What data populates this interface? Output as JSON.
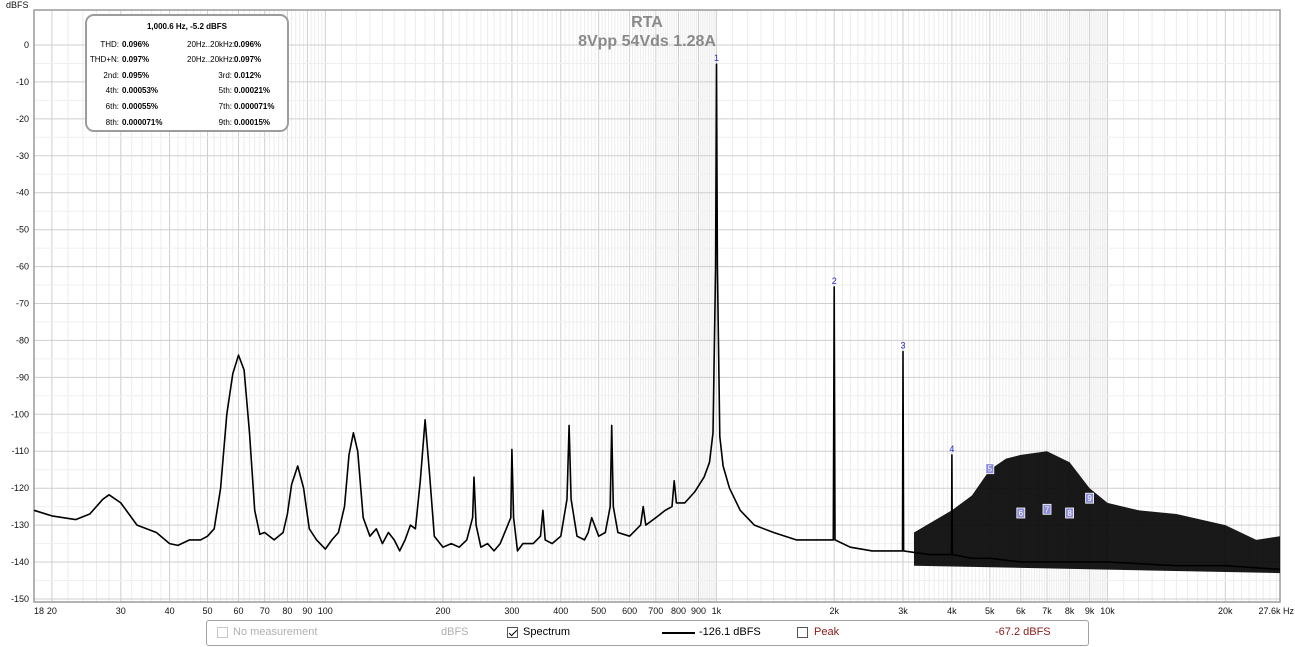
{
  "chart_data": {
    "type": "line",
    "title": "RTA",
    "subtitle": "8Vpp 54Vds 1.28A",
    "ylabel": "dBFS",
    "xlabel": "",
    "xscale": "log",
    "xlim": [
      18,
      27600
    ],
    "ylim": [
      -150,
      5
    ],
    "grid": true,
    "x_ticks": [
      "18",
      "20",
      "30",
      "40",
      "50",
      "60",
      "70",
      "80",
      "90",
      "100",
      "200",
      "300",
      "400",
      "500",
      "600",
      "700",
      "800",
      "900",
      "1k",
      "2k",
      "3k",
      "4k",
      "5k",
      "6k",
      "7k",
      "8k",
      "9k",
      "10k",
      "20k",
      "27.6k Hz"
    ],
    "y_ticks": [
      "0",
      "-10",
      "-20",
      "-30",
      "-40",
      "-50",
      "-60",
      "-70",
      "-80",
      "-90",
      "-100",
      "-110",
      "-120",
      "-130",
      "-140",
      "-150"
    ],
    "series": [
      {
        "values": [
          [
            18,
            -126
          ],
          [
            20,
            -127.5
          ],
          [
            23,
            -128.5
          ],
          [
            25,
            -127
          ],
          [
            27,
            -123
          ],
          [
            28,
            -121.8
          ],
          [
            30,
            -124
          ],
          [
            33,
            -130
          ],
          [
            37,
            -132
          ],
          [
            40,
            -135
          ],
          [
            42,
            -135.5
          ],
          [
            45,
            -134
          ],
          [
            48,
            -134
          ],
          [
            50,
            -133
          ],
          [
            52,
            -131
          ],
          [
            54,
            -120
          ],
          [
            56,
            -100
          ],
          [
            58,
            -89
          ],
          [
            60,
            -84
          ],
          [
            62,
            -88
          ],
          [
            64,
            -105
          ],
          [
            66,
            -126
          ],
          [
            68,
            -132.5
          ],
          [
            70,
            -132
          ],
          [
            74,
            -134
          ],
          [
            78,
            -132
          ],
          [
            80,
            -127
          ],
          [
            82,
            -119
          ],
          [
            85,
            -114
          ],
          [
            88,
            -120
          ],
          [
            91,
            -131
          ],
          [
            95,
            -134
          ],
          [
            100,
            -136.5
          ],
          [
            104,
            -134
          ],
          [
            108,
            -132
          ],
          [
            112,
            -125
          ],
          [
            115,
            -111
          ],
          [
            118,
            -105
          ],
          [
            121,
            -110
          ],
          [
            125,
            -128
          ],
          [
            130,
            -133
          ],
          [
            135,
            -131
          ],
          [
            140,
            -135
          ],
          [
            145,
            -132
          ],
          [
            150,
            -134
          ],
          [
            155,
            -137
          ],
          [
            160,
            -134
          ],
          [
            165,
            -130
          ],
          [
            170,
            -131
          ],
          [
            175,
            -118
          ],
          [
            180,
            -101.5
          ],
          [
            185,
            -117
          ],
          [
            190,
            -133
          ],
          [
            200,
            -136
          ],
          [
            210,
            -135
          ],
          [
            220,
            -136
          ],
          [
            230,
            -134
          ],
          [
            238,
            -128
          ],
          [
            240,
            -117
          ],
          [
            243,
            -130
          ],
          [
            250,
            -136
          ],
          [
            260,
            -135
          ],
          [
            270,
            -137
          ],
          [
            280,
            -135
          ],
          [
            298,
            -128
          ],
          [
            300,
            -109.5
          ],
          [
            303,
            -128
          ],
          [
            310,
            -137
          ],
          [
            320,
            -135
          ],
          [
            340,
            -135
          ],
          [
            355,
            -133
          ],
          [
            360,
            -126
          ],
          [
            365,
            -134
          ],
          [
            380,
            -135
          ],
          [
            400,
            -133
          ],
          [
            415,
            -123
          ],
          [
            420,
            -103
          ],
          [
            425,
            -123
          ],
          [
            440,
            -133
          ],
          [
            460,
            -134
          ],
          [
            470,
            -132
          ],
          [
            480,
            -128
          ],
          [
            500,
            -133
          ],
          [
            520,
            -132
          ],
          [
            535,
            -125
          ],
          [
            540,
            -103
          ],
          [
            545,
            -125
          ],
          [
            560,
            -132
          ],
          [
            600,
            -133
          ],
          [
            640,
            -130
          ],
          [
            650,
            -125
          ],
          [
            660,
            -130
          ],
          [
            700,
            -128
          ],
          [
            740,
            -126
          ],
          [
            770,
            -125
          ],
          [
            780,
            -118
          ],
          [
            790,
            -124
          ],
          [
            830,
            -124
          ],
          [
            880,
            -121
          ],
          [
            930,
            -117
          ],
          [
            960,
            -113
          ],
          [
            980,
            -105
          ],
          [
            995,
            -60
          ],
          [
            1000.6,
            -5.2
          ],
          [
            1006,
            -60
          ],
          [
            1020,
            -106
          ],
          [
            1040,
            -114
          ],
          [
            1080,
            -120
          ],
          [
            1150,
            -126
          ],
          [
            1250,
            -130
          ],
          [
            1400,
            -132
          ],
          [
            1600,
            -134
          ],
          [
            1800,
            -134
          ],
          [
            1990,
            -134
          ],
          [
            2000,
            -65.5
          ],
          [
            2010,
            -134
          ],
          [
            2200,
            -136
          ],
          [
            2500,
            -137
          ],
          [
            2990,
            -137
          ],
          [
            3000,
            -83
          ],
          [
            3010,
            -137
          ],
          [
            3500,
            -138
          ],
          [
            3990,
            -138
          ],
          [
            4000,
            -111
          ],
          [
            4010,
            -138
          ],
          [
            4500,
            -139
          ],
          [
            5000,
            -139
          ],
          [
            6000,
            -140
          ],
          [
            7000,
            -140
          ],
          [
            8000,
            -140
          ],
          [
            10000,
            -140
          ],
          [
            15000,
            -141
          ],
          [
            20000,
            -141
          ],
          [
            27600,
            -142
          ]
        ]
      }
    ],
    "noise_envelope": [
      [
        3200,
        -132
      ],
      [
        4000,
        -126
      ],
      [
        4500,
        -122
      ],
      [
        5000,
        -115
      ],
      [
        5500,
        -112
      ],
      [
        6000,
        -111
      ],
      [
        7000,
        -110
      ],
      [
        8000,
        -113
      ],
      [
        9000,
        -120
      ],
      [
        10000,
        -124
      ],
      [
        12000,
        -126
      ],
      [
        15000,
        -127
      ],
      [
        20000,
        -130
      ],
      [
        24000,
        -134
      ],
      [
        27600,
        -133
      ]
    ],
    "markers": [
      {
        "label": "1",
        "x": 1000.6,
        "y": -5.2,
        "style": "text"
      },
      {
        "label": "2",
        "x": 2000,
        "y": -65.5,
        "style": "text"
      },
      {
        "label": "3",
        "x": 3000,
        "y": -83,
        "style": "text"
      },
      {
        "label": "4",
        "x": 4000,
        "y": -111,
        "style": "text"
      },
      {
        "label": "5",
        "x": 5000,
        "y": -115,
        "style": "box"
      },
      {
        "label": "6",
        "x": 6000,
        "y": -127,
        "style": "box"
      },
      {
        "label": "7",
        "x": 7000,
        "y": -126,
        "style": "box"
      },
      {
        "label": "8",
        "x": 8000,
        "y": -127,
        "style": "box"
      },
      {
        "label": "9",
        "x": 9000,
        "y": -123,
        "style": "box"
      }
    ],
    "colors": {
      "trace": "#000000",
      "grid": "#d6d6d6",
      "marker_text": "#2b2bd0",
      "marker_box": "#8d8dd8",
      "title": "#8a8a8a",
      "peak": "#8b1a1a",
      "disabled": "#b0b0b0"
    }
  },
  "info_box": {
    "header": "1,000.6 Hz, -5.2 dBFS",
    "rows": [
      {
        "l_label": "THD:",
        "l_value": "0.096%",
        "r_label": "20Hz..20kHz:",
        "r_value": "0.096%"
      },
      {
        "l_label": "THD+N:",
        "l_value": "0.097%",
        "r_label": "20Hz..20kHz:",
        "r_value": "0.097%"
      },
      {
        "l_label": "2nd:",
        "l_value": "0.095%",
        "r_label": "3rd:",
        "r_value": "0.012%"
      },
      {
        "l_label": "4th:",
        "l_value": "0.00053%",
        "r_label": "5th:",
        "r_value": "0.00021%"
      },
      {
        "l_label": "6th:",
        "l_value": "0.00055%",
        "r_label": "7th:",
        "r_value": "0.000071%"
      },
      {
        "l_label": "8th:",
        "l_value": "0.000071%",
        "r_label": "9th:",
        "r_value": "0.00015%"
      }
    ]
  },
  "legend": {
    "no_measurement": "No measurement",
    "units": "dBFS",
    "spectrum_label": "Spectrum",
    "spectrum_value": "-126.1 dBFS",
    "peak_label": "Peak",
    "peak_value": "-67.2 dBFS",
    "spectrum_checked": true,
    "peak_checked": false
  }
}
